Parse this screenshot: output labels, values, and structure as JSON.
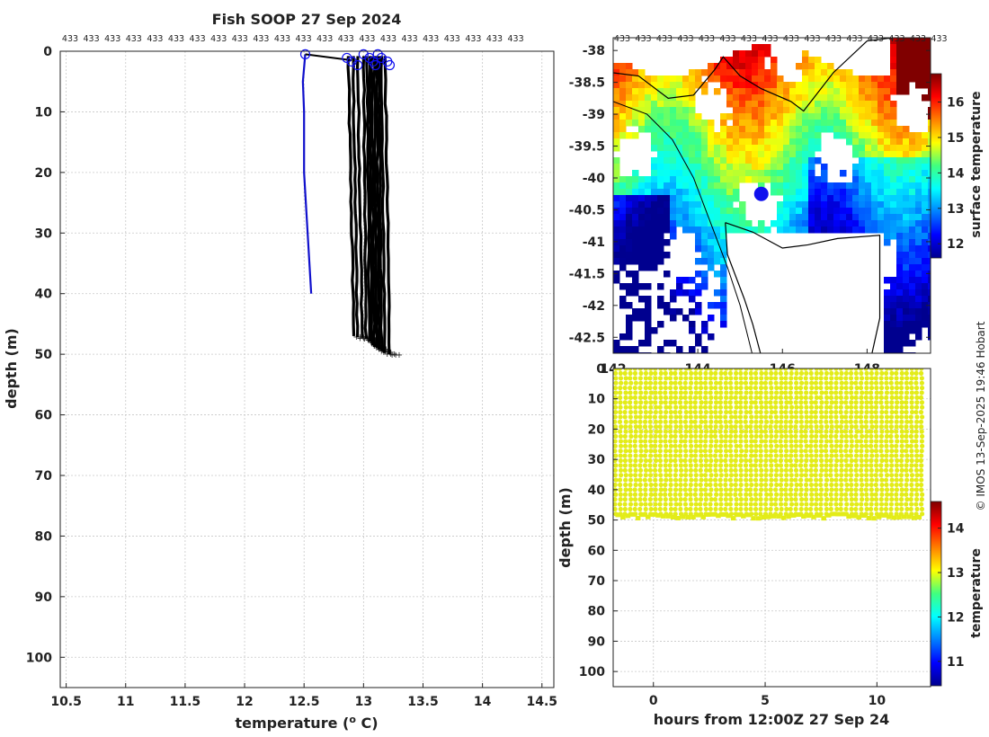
{
  "chart_data": [
    {
      "type": "line",
      "title": "Fish SOOP 27 Sep 2024",
      "xlabel": "temperature (",
      "xlabel_sup": "o",
      "xlabel_end": " C)",
      "ylabel": "depth (m)",
      "xlim": [
        10.45,
        14.6
      ],
      "ylim": [
        105,
        0
      ],
      "xticks": [
        10.5,
        11,
        11.5,
        12,
        12.5,
        13,
        13.5,
        14,
        14.5
      ],
      "yticks": [
        0,
        10,
        20,
        30,
        40,
        50,
        60,
        70,
        80,
        90,
        100
      ],
      "grid": true,
      "top_label_value": "433",
      "top_label_count": 22,
      "series": [
        {
          "color": "#1010cc",
          "depth": [
            0.5,
            5,
            10,
            20,
            30,
            40
          ],
          "temperature": [
            12.51,
            12.49,
            12.5,
            12.5,
            12.53,
            12.56
          ]
        },
        {
          "color": "#000000",
          "profiles": [
            {
              "t_top": 12.87,
              "t_bottom": 12.92,
              "bottom_depth": 47.0
            },
            {
              "t_top": 12.91,
              "t_bottom": 12.95,
              "bottom_depth": 47.2
            },
            {
              "t_top": 12.95,
              "t_bottom": 12.99,
              "bottom_depth": 47.3
            },
            {
              "t_top": 13.0,
              "t_bottom": 13.02,
              "bottom_depth": 47.5
            },
            {
              "t_top": 13.03,
              "t_bottom": 13.05,
              "bottom_depth": 48.0
            },
            {
              "t_top": 13.05,
              "t_bottom": 13.07,
              "bottom_depth": 48.5
            },
            {
              "t_top": 13.07,
              "t_bottom": 13.09,
              "bottom_depth": 48.8
            },
            {
              "t_top": 13.09,
              "t_bottom": 13.11,
              "bottom_depth": 49.0
            },
            {
              "t_top": 13.11,
              "t_bottom": 13.13,
              "bottom_depth": 49.3
            },
            {
              "t_top": 13.13,
              "t_bottom": 13.15,
              "bottom_depth": 49.5
            },
            {
              "t_top": 13.15,
              "t_bottom": 13.18,
              "bottom_depth": 49.8
            },
            {
              "t_top": 13.18,
              "t_bottom": 13.22,
              "bottom_depth": 50.0
            }
          ],
          "surface_markers": [
            12.51,
            12.86,
            12.9,
            12.95,
            13.0,
            13.05,
            13.08,
            13.1,
            13.12,
            13.15,
            13.2,
            13.22
          ]
        }
      ]
    },
    {
      "type": "heatmap",
      "colorbar_label": "surface temperature",
      "xlim": [
        142,
        149.5
      ],
      "ylim": [
        -42.75,
        -37.8
      ],
      "xticks": [
        142,
        144,
        146,
        148
      ],
      "yticks": [
        -38,
        -38.5,
        -39,
        -39.5,
        -40,
        -40.5,
        -41,
        -41.5,
        -42,
        -42.5
      ],
      "colorbar_ticks": [
        12,
        13,
        14,
        15,
        16
      ],
      "colorbar_range": [
        11.6,
        16.8
      ],
      "marker": {
        "lon": 145.5,
        "lat": -40.25,
        "color": "#1010ee"
      },
      "top_label_value": "433",
      "top_label_count": 16
    },
    {
      "type": "scatter",
      "xlabel": "hours from 12:00Z 27 Sep 24",
      "ylabel": "depth (m)",
      "colorbar_label": "temperature",
      "xlim": [
        -1.8,
        12.4
      ],
      "ylim": [
        105,
        0
      ],
      "xticks": [
        0,
        5,
        10
      ],
      "yticks": [
        0,
        10,
        20,
        30,
        40,
        50,
        60,
        70,
        80,
        90,
        100
      ],
      "colorbar_ticks": [
        11,
        12,
        13,
        14
      ],
      "colorbar_range": [
        10.45,
        14.6
      ],
      "point_color": "#e3ec18",
      "profile_start_hours": -1.7,
      "profile_end_hours": 12.0,
      "profile_count": 62,
      "max_depth": 49.5
    }
  ],
  "credit": "© IMOS 13-Sep-2025 19:46 Hobart"
}
